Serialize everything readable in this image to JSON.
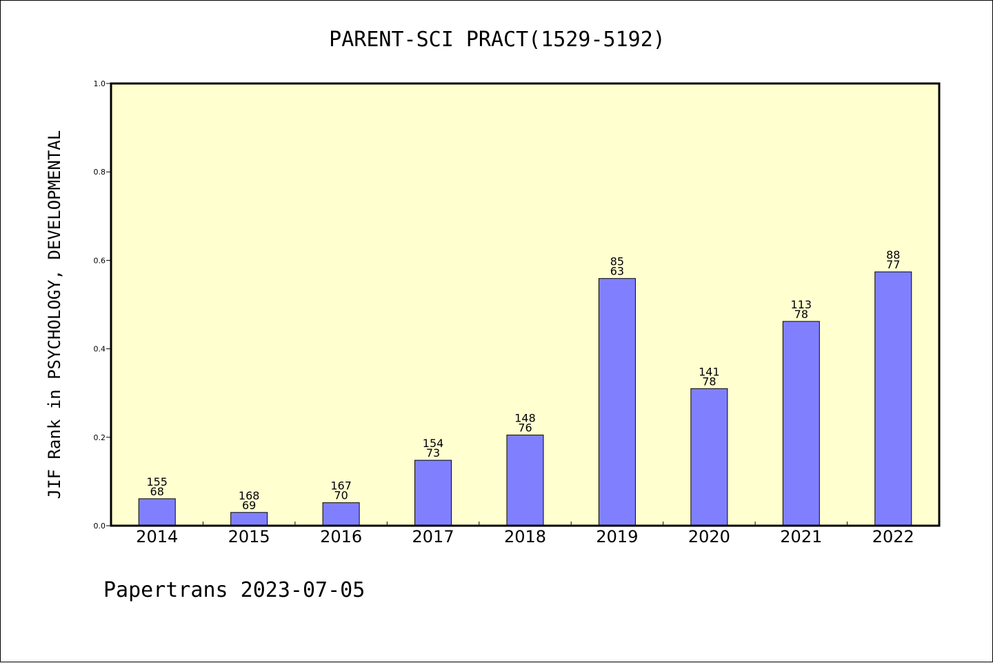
{
  "footer_text": "Papertrans 2023-07-05",
  "colors": {
    "plot_background": "#ffffd0",
    "bar_fill": "#8080ff",
    "axis": "#000000"
  },
  "chart_data": {
    "type": "bar",
    "title": "PARENT-SCI PRACT(1529-5192)",
    "xlabel": "",
    "ylabel": "JIF Rank in PSYCHOLOGY, DEVELOPMENTAL",
    "ylim": [
      0,
      1.0
    ],
    "yticks": [
      "0.0",
      "0.2",
      "0.4",
      "0.6",
      "0.8",
      "1.0"
    ],
    "categories": [
      "2014",
      "2015",
      "2016",
      "2017",
      "2018",
      "2019",
      "2020",
      "2021",
      "2022"
    ],
    "values": [
      0.061,
      0.03,
      0.052,
      0.148,
      0.205,
      0.559,
      0.31,
      0.462,
      0.574
    ],
    "label_top": [
      "155",
      "168",
      "167",
      "154",
      "148",
      "85",
      "141",
      "113",
      "88"
    ],
    "label_bottom": [
      "68",
      "69",
      "70",
      "73",
      "76",
      "63",
      "78",
      "78",
      "77"
    ],
    "grid": false,
    "legend": "none"
  }
}
